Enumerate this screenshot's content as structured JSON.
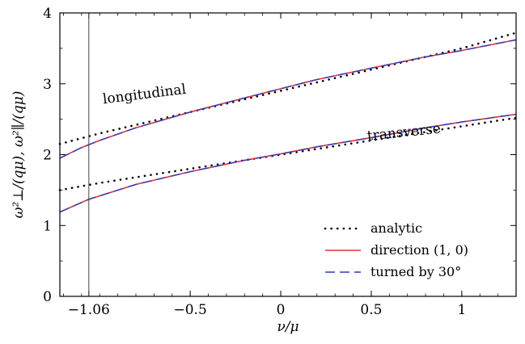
{
  "chart_data": {
    "type": "line",
    "xlabel": "ν/μ",
    "ylabel": "ω²⊥/(qμ), ω²∥/(qμ)",
    "xlim": [
      -1.22,
      1.3
    ],
    "ylim": [
      0,
      4
    ],
    "x_ticks": [
      {
        "value": -1.06,
        "label": "−1.06"
      },
      {
        "value": -0.5,
        "label": "−0.5"
      },
      {
        "value": 0,
        "label": "0"
      },
      {
        "value": 0.5,
        "label": "0.5"
      },
      {
        "value": 1,
        "label": "1"
      }
    ],
    "y_ticks": [
      {
        "value": 0,
        "label": "0"
      },
      {
        "value": 1,
        "label": "1"
      },
      {
        "value": 2,
        "label": "2"
      },
      {
        "value": 3,
        "label": "3"
      },
      {
        "value": 4,
        "label": "4"
      }
    ],
    "vertical_line_x": -1.06,
    "annotations": [
      {
        "text": "longitudinal",
        "x": -0.98,
        "y": 2.72,
        "rotate": -7
      },
      {
        "text": "transverse",
        "x": 0.48,
        "y": 2.2,
        "rotate": -6
      }
    ],
    "legend": {
      "position": "bottom-right",
      "entries": [
        "analytic",
        "direction (1, 0)",
        "turned by 30°"
      ]
    },
    "series": [
      {
        "name": "analytic",
        "group": "longitudinal",
        "color": "#000000",
        "style": "dotted",
        "x": [
          -1.22,
          -1.0,
          -0.5,
          0.0,
          0.5,
          1.0,
          1.3
        ],
        "y": [
          2.15,
          2.3,
          2.6,
          2.9,
          3.2,
          3.5,
          3.72
        ]
      },
      {
        "name": "direction (1, 0)",
        "group": "longitudinal",
        "color": "#e8303a",
        "style": "solid",
        "x": [
          -1.22,
          -1.1,
          -1.0,
          -0.8,
          -0.5,
          -0.2,
          0.0,
          0.2,
          0.5,
          0.8,
          1.0,
          1.3
        ],
        "y": [
          1.95,
          2.1,
          2.2,
          2.38,
          2.6,
          2.8,
          2.93,
          3.06,
          3.22,
          3.38,
          3.47,
          3.62
        ]
      },
      {
        "name": "turned by 30°",
        "group": "longitudinal",
        "color": "#2c3cb8",
        "style": "dashed",
        "x": [
          -1.22,
          -1.1,
          -1.0,
          -0.8,
          -0.5,
          -0.2,
          0.0,
          0.2,
          0.5,
          0.8,
          1.0,
          1.3
        ],
        "y": [
          1.95,
          2.1,
          2.2,
          2.38,
          2.6,
          2.8,
          2.93,
          3.06,
          3.22,
          3.38,
          3.47,
          3.62
        ]
      },
      {
        "name": "analytic",
        "group": "transverse",
        "color": "#000000",
        "style": "dotted",
        "x": [
          -1.22,
          -1.0,
          -0.5,
          0.0,
          0.5,
          1.0,
          1.3
        ],
        "y": [
          1.5,
          1.6,
          1.8,
          2.0,
          2.2,
          2.4,
          2.52
        ]
      },
      {
        "name": "direction (1, 0)",
        "group": "transverse",
        "color": "#e8303a",
        "style": "solid",
        "x": [
          -1.22,
          -1.06,
          -0.8,
          -0.5,
          -0.2,
          0.0,
          0.2,
          0.5,
          0.8,
          1.0,
          1.3
        ],
        "y": [
          1.19,
          1.37,
          1.58,
          1.76,
          1.92,
          2.01,
          2.11,
          2.24,
          2.38,
          2.46,
          2.57
        ]
      },
      {
        "name": "turned by 30°",
        "group": "transverse",
        "color": "#2c3cb8",
        "style": "dashed",
        "x": [
          -1.22,
          -1.06,
          -0.8,
          -0.5,
          -0.2,
          0.0,
          0.2,
          0.5,
          0.8,
          1.0,
          1.3
        ],
        "y": [
          1.19,
          1.37,
          1.58,
          1.76,
          1.92,
          2.01,
          2.11,
          2.24,
          2.38,
          2.46,
          2.57
        ]
      }
    ]
  }
}
